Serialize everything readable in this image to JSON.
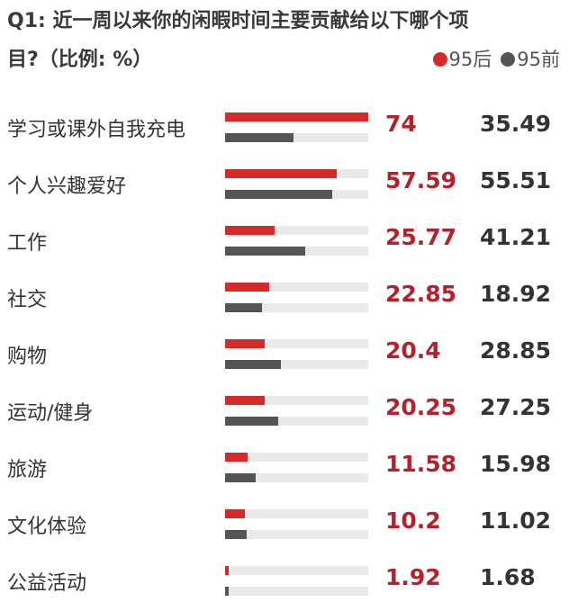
{
  "chart_data": {
    "type": "bar",
    "title_line1": "Q1: 近一周以来你的闲暇时间主要贡献给以下哪个项",
    "title_line2": "目?（比例: %）",
    "legend": [
      {
        "name": "95后",
        "color": "#d42a2a"
      },
      {
        "name": "95前",
        "color": "#555555"
      }
    ],
    "categories": [
      "学习或课外自我充电",
      "个人兴趣爱好",
      "工作",
      "社交",
      "购物",
      "运动/健身",
      "旅游",
      "文化体验",
      "公益活动"
    ],
    "series": [
      {
        "name": "95后",
        "color": "#d42a2a",
        "values": [
          74,
          57.59,
          25.77,
          22.85,
          20.4,
          20.25,
          11.58,
          10.2,
          1.92
        ],
        "labels": [
          "74",
          "57.59",
          "25.77",
          "22.85",
          "20.4",
          "20.25",
          "11.58",
          "10.2",
          "1.92"
        ]
      },
      {
        "name": "95前",
        "color": "#555555",
        "values": [
          35.49,
          55.51,
          41.21,
          18.92,
          28.85,
          27.25,
          15.98,
          11.02,
          1.68
        ],
        "labels": [
          "35.49",
          "55.51",
          "41.21",
          "18.92",
          "28.85",
          "27.25",
          "15.98",
          "11.02",
          "1.68"
        ]
      }
    ],
    "xlim": [
      0,
      74
    ],
    "orientation": "horizontal",
    "legend_placement": "top-right",
    "grid": false
  }
}
